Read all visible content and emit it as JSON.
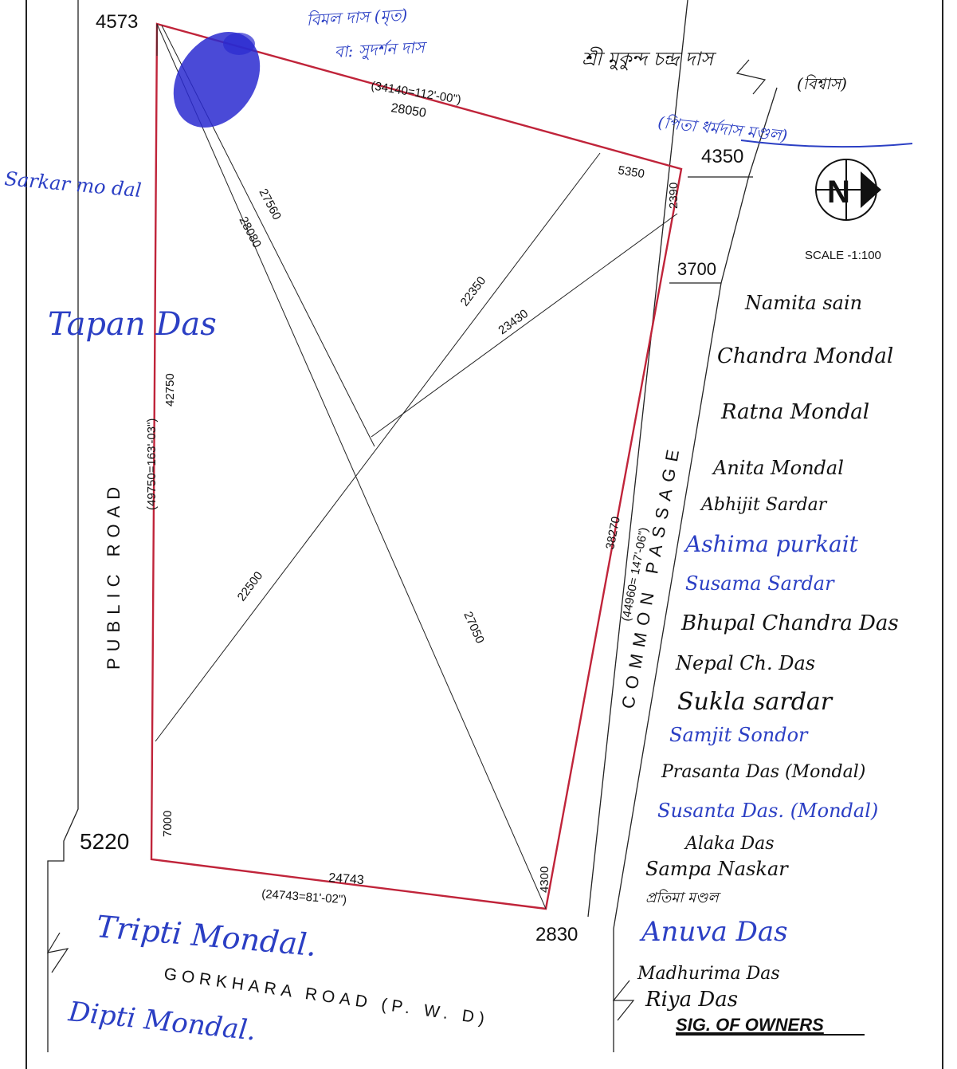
{
  "colors": {
    "ink": "#1a1a1a",
    "plot_border": "#c0243a",
    "handwriting_blue": "#2b3fc4",
    "handwriting_black": "#111111",
    "thumb": "#2a2ad0"
  },
  "corners": {
    "nw": "4573",
    "ne": "4350",
    "ne_lower": "3700",
    "sw": "5220",
    "se": "2830"
  },
  "dimensions": {
    "north_side": "28050",
    "north_side_paren": "(34140=112'-00\")",
    "east_segment_top": "5350",
    "east_segment_small": "2390",
    "east_side": "38270",
    "east_side_paren": "(44960= 147'-06\")",
    "west_side": "42750",
    "west_side_paren": "(49750=163'-03\")",
    "west_lower": "7000",
    "south_side": "24743",
    "south_side_paren": "(24743=81'-02\")",
    "south_east_small": "4300",
    "diag_27560": "27560",
    "diag_28080": "28080",
    "diag_22350": "22350",
    "diag_23430": "23430",
    "diag_22500": "22500",
    "diag_27050": "27050"
  },
  "roads": {
    "west": "PUBLIC ROAD",
    "east": "COMMON PASSAGE",
    "south": "GORKHARA ROAD (P. W. D)"
  },
  "compass": {
    "letter": "N",
    "icon": "north-arrow-icon"
  },
  "scale": "SCALE -1:100",
  "neighbors": {
    "bengali_top_1": "বিমল দাস (মৃত)",
    "bengali_top_2": "বা: সুদর্শন দাস",
    "bengali_top_3": "শ্রী মুকুন্দ চন্দ্র দাস",
    "bengali_top_4": "(বিশ্বাস)",
    "bengali_top_5": "(পিতা ধর্মদাস মণ্ডল)",
    "west_top": "Sarkar mo dal",
    "west_mid": "Tapan Das",
    "south_1": "Tripti Mondal.",
    "south_2": "Dipti Mondal."
  },
  "owners_title": "SIG. OF OWNERS",
  "owners": [
    "Namita sain",
    "Chandra Mondal",
    "Ratna Mondal",
    "Anita Mondal",
    "Abhijit Sardar",
    "Ashima purkait",
    "Susama Sardar",
    "Bhupal Chandra Das",
    "Nepal Ch. Das",
    "Sukla sardar",
    "Samjit Sondor",
    "Prasanta Das (Mondal)",
    "Susanta Das. (Mondal)",
    "Alaka Das",
    "Sampa Naskar",
    "প্রতিমা মণ্ডল",
    "Anuva Das",
    "Madhurima Das",
    "Riya Das"
  ]
}
